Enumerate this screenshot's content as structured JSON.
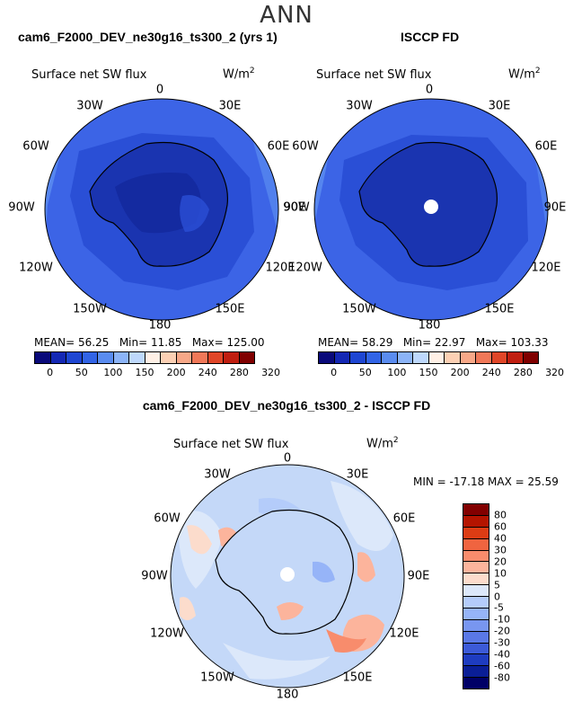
{
  "main_title": "ANN",
  "panels": [
    {
      "title": "cam6_F2000_DEV_ne30g16_ts300_2 (yrs 1)",
      "variable": "Surface net SW flux",
      "units_base": "W/m",
      "units_exp": "2",
      "stats": {
        "mean_label": "MEAN=",
        "mean": "56.25",
        "min_label": "Min=",
        "min": "11.85",
        "max_label": "Max=",
        "max": "125.00"
      }
    },
    {
      "title": "ISCCP FD",
      "variable": "Surface net SW flux",
      "units_base": "W/m",
      "units_exp": "2",
      "stats": {
        "mean_label": "MEAN=",
        "mean": "58.29",
        "min_label": "Min=",
        "min": "22.97",
        "max_label": "Max=",
        "max": "103.33"
      }
    },
    {
      "title": "cam6_F2000_DEV_ne30g16_ts300_2 - ISCCP FD",
      "variable": "Surface net SW flux",
      "units_base": "W/m",
      "units_exp": "2",
      "stats_text": "MIN = -17.18 MAX =  25.59"
    }
  ],
  "longitude_labels": [
    "0",
    "30E",
    "60E",
    "90E",
    "120E",
    "150E",
    "180",
    "150W",
    "120W",
    "90W",
    "60W",
    "30W"
  ],
  "chart_data": [
    {
      "type": "heatmap",
      "title": "cam6_F2000_DEV_ne30g16_ts300_2 (yrs 1)",
      "projection": "south-polar-stereographic",
      "colorbar": {
        "levels": [
          "0",
          "50",
          "100",
          "150",
          "200",
          "240",
          "280",
          "320"
        ]
      },
      "summary": {
        "mean": 56.25,
        "min": 11.85,
        "max": 125.0
      }
    },
    {
      "type": "heatmap",
      "title": "ISCCP FD",
      "projection": "south-polar-stereographic",
      "colorbar": {
        "levels": [
          "0",
          "50",
          "100",
          "150",
          "200",
          "240",
          "280",
          "320"
        ]
      },
      "summary": {
        "mean": 58.29,
        "min": 22.97,
        "max": 103.33
      }
    },
    {
      "type": "heatmap",
      "title": "cam6_F2000_DEV_ne30g16_ts300_2 - ISCCP FD",
      "projection": "south-polar-stereographic",
      "colorbar": {
        "levels": [
          "80",
          "60",
          "40",
          "30",
          "20",
          "10",
          "5",
          "0",
          "-5",
          "-10",
          "-20",
          "-30",
          "-40",
          "-60",
          "-80"
        ]
      },
      "summary": {
        "min": -17.18,
        "max": 25.59
      }
    }
  ],
  "colors": {
    "abs_scale": [
      "#0a0a7a",
      "#1428b4",
      "#1e46d2",
      "#3264e6",
      "#5a8cf0",
      "#8cb4f8",
      "#bed8fc",
      "#fff0e6",
      "#fcd0b4",
      "#f8a888",
      "#f07858",
      "#e04628",
      "#c01e10",
      "#800000"
    ],
    "diff_scale": [
      "#820000",
      "#b41400",
      "#dc3c14",
      "#f06440",
      "#f88c6c",
      "#fcb49c",
      "#fcdccc",
      "#dce8fa",
      "#b4ccfa",
      "#96b4f8",
      "#7896f0",
      "#5a78e6",
      "#3c5ad8",
      "#1e3cc0",
      "#0a1e96",
      "#000066"
    ],
    "ocean_model": "#3c64e6",
    "ocean_obs": "#3c64e6",
    "diff_background": "#c4d8f8"
  }
}
